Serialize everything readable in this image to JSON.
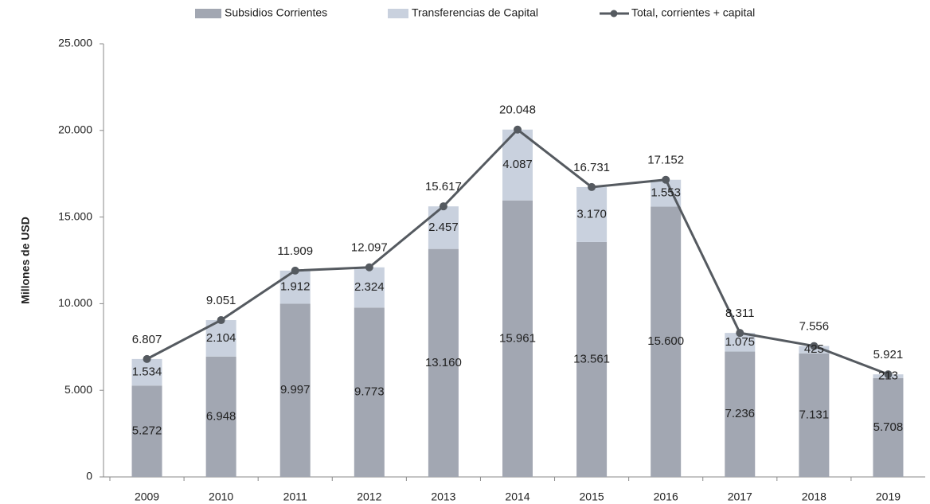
{
  "chart_data": {
    "type": "bar",
    "stacked": true,
    "y_label": "Millones de USD",
    "categories": [
      "2009",
      "2010",
      "2011",
      "2012",
      "2013",
      "2014",
      "2015",
      "2016",
      "2017",
      "2018",
      "2019"
    ],
    "series": [
      {
        "name": "Subsidios Corrientes",
        "type": "bar",
        "color": "#a2a7b2",
        "values": [
          5272,
          6948,
          9997,
          9773,
          13160,
          15961,
          13561,
          15600,
          7236,
          7131,
          5708
        ],
        "value_labels": [
          "5.272",
          "6.948",
          "9.997",
          "9.773",
          "13.160",
          "15.961",
          "13.561",
          "15.600",
          "7.236",
          "7.131",
          "5.708"
        ]
      },
      {
        "name": "Transferencias de Capital",
        "type": "bar",
        "color": "#c9d1de",
        "values": [
          1534,
          2104,
          1912,
          2324,
          2457,
          4087,
          3170,
          1553,
          1075,
          425,
          213
        ],
        "value_labels": [
          "1.534",
          "2.104",
          "1.912",
          "2.324",
          "2.457",
          "4.087",
          "3.170",
          "1.553",
          "1.075",
          "425",
          "213"
        ]
      },
      {
        "name": "Total, corrientes + capital",
        "type": "line",
        "color": "#555a60",
        "values": [
          6807,
          9051,
          11909,
          12097,
          15617,
          20048,
          16731,
          17152,
          8311,
          7556,
          5921
        ],
        "value_labels": [
          "6.807",
          "9.051",
          "11.909",
          "12.097",
          "15.617",
          "20.048",
          "16.731",
          "17.152",
          "8.311",
          "7.556",
          "5.921"
        ]
      }
    ],
    "ylim": [
      0,
      25000
    ],
    "yticks": [
      0,
      {
        "value": 5000,
        "label": "5.000"
      },
      {
        "value": 10000,
        "label": "10.000"
      },
      {
        "value": 15000,
        "label": "15.000"
      },
      {
        "value": 20000,
        "label": "20.000"
      },
      {
        "value": 25000,
        "label": "25.000"
      }
    ],
    "grid": false,
    "legend": "top"
  }
}
